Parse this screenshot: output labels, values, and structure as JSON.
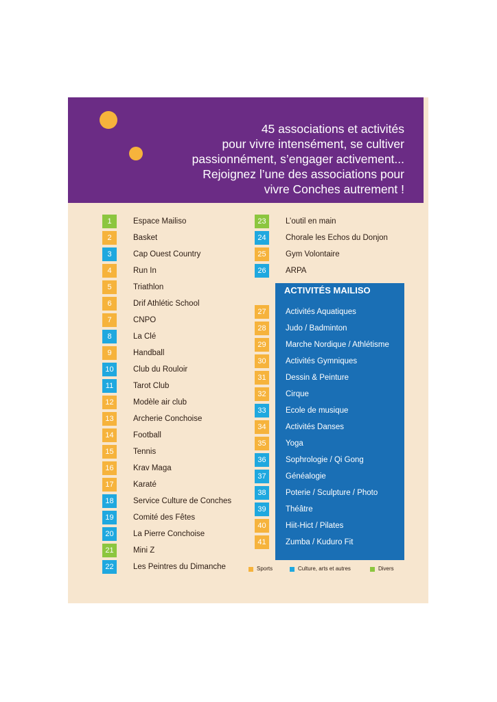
{
  "colors": {
    "purple": "#6b2c85",
    "background": "#f7e6cf",
    "blue_panel": "#1a6fb5",
    "sports": "#f6b33c",
    "culture": "#1fa8df",
    "divers": "#8cc63f"
  },
  "headline": [
    "45 associations et activités",
    "pour vivre intensément, se cultiver",
    "passionnément, s’engager activement...",
    "Rejoignez l’une des associations pour",
    "vivre Conches autrement !"
  ],
  "associations_left": [
    {
      "num": "1",
      "name": "Espace Mailiso",
      "category": "divers"
    },
    {
      "num": "2",
      "name": "Basket",
      "category": "sports"
    },
    {
      "num": "3",
      "name": "Cap Ouest Country",
      "category": "culture"
    },
    {
      "num": "4",
      "name": "Run In",
      "category": "sports"
    },
    {
      "num": "5",
      "name": "Triathlon",
      "category": "sports"
    },
    {
      "num": "6",
      "name": "Drif Athlétic School",
      "category": "sports"
    },
    {
      "num": "7",
      "name": "CNPO",
      "category": "sports"
    },
    {
      "num": "8",
      "name": "La Clé",
      "category": "culture"
    },
    {
      "num": "9",
      "name": "Handball",
      "category": "sports"
    },
    {
      "num": "10",
      "name": "Club du Rouloir",
      "category": "culture"
    },
    {
      "num": "11",
      "name": "Tarot Club",
      "category": "culture"
    },
    {
      "num": "12",
      "name": "Modèle air club",
      "category": "sports"
    },
    {
      "num": "13",
      "name": "Archerie Conchoise",
      "category": "sports"
    },
    {
      "num": "14",
      "name": "Football",
      "category": "sports"
    },
    {
      "num": "15",
      "name": "Tennis",
      "category": "sports"
    },
    {
      "num": "16",
      "name": "Krav Maga",
      "category": "sports"
    },
    {
      "num": "17",
      "name": "Karaté",
      "category": "sports"
    },
    {
      "num": "18",
      "name": "Service Culture de Conches",
      "category": "culture"
    },
    {
      "num": "19",
      "name": "Comité des Fêtes",
      "category": "culture"
    },
    {
      "num": "20",
      "name": "La Pierre Conchoise",
      "category": "culture"
    },
    {
      "num": "21",
      "name": "Mini Z",
      "category": "divers"
    },
    {
      "num": "22",
      "name": "Les Peintres du Dimanche",
      "category": "culture"
    }
  ],
  "associations_right": [
    {
      "num": "23",
      "name": "L’outil en main",
      "category": "divers"
    },
    {
      "num": "24",
      "name": "Chorale les Echos du Donjon",
      "category": "culture"
    },
    {
      "num": "25",
      "name": "Gym Volontaire",
      "category": "sports"
    },
    {
      "num": "26",
      "name": "ARPA",
      "category": "culture"
    }
  ],
  "mailiso": {
    "title": "ACTIVITÉS MAILISO",
    "items": [
      {
        "num": "27",
        "name": "Activités Aquatiques",
        "category": "sports"
      },
      {
        "num": "28",
        "name": "Judo / Badminton",
        "category": "sports"
      },
      {
        "num": "29",
        "name": "Marche Nordique / Athlétisme",
        "category": "sports"
      },
      {
        "num": "30",
        "name": "Activités Gymniques",
        "category": "sports"
      },
      {
        "num": "31",
        "name": "Dessin & Peinture",
        "category": "sports"
      },
      {
        "num": "32",
        "name": "Cirque",
        "category": "sports"
      },
      {
        "num": "33",
        "name": "Ecole de musique",
        "category": "culture"
      },
      {
        "num": "34",
        "name": "Activités Danses",
        "category": "sports"
      },
      {
        "num": "35",
        "name": "Yoga",
        "category": "sports"
      },
      {
        "num": "36",
        "name": "Sophrologie / Qi Gong",
        "category": "culture"
      },
      {
        "num": "37",
        "name": "Généalogie",
        "category": "culture"
      },
      {
        "num": "38",
        "name": "Poterie / Sculpture / Photo",
        "category": "culture"
      },
      {
        "num": "39",
        "name": "Théâtre",
        "category": "culture"
      },
      {
        "num": "40",
        "name": "Hiit-Hict / Pilates",
        "category": "sports"
      },
      {
        "num": "41",
        "name": "Zumba / Kuduro Fit",
        "category": "sports"
      }
    ]
  },
  "legend": [
    {
      "label": "Sports",
      "category": "sports"
    },
    {
      "label": "Culture, arts et autres",
      "category": "culture"
    },
    {
      "label": "Divers",
      "category": "divers"
    }
  ]
}
